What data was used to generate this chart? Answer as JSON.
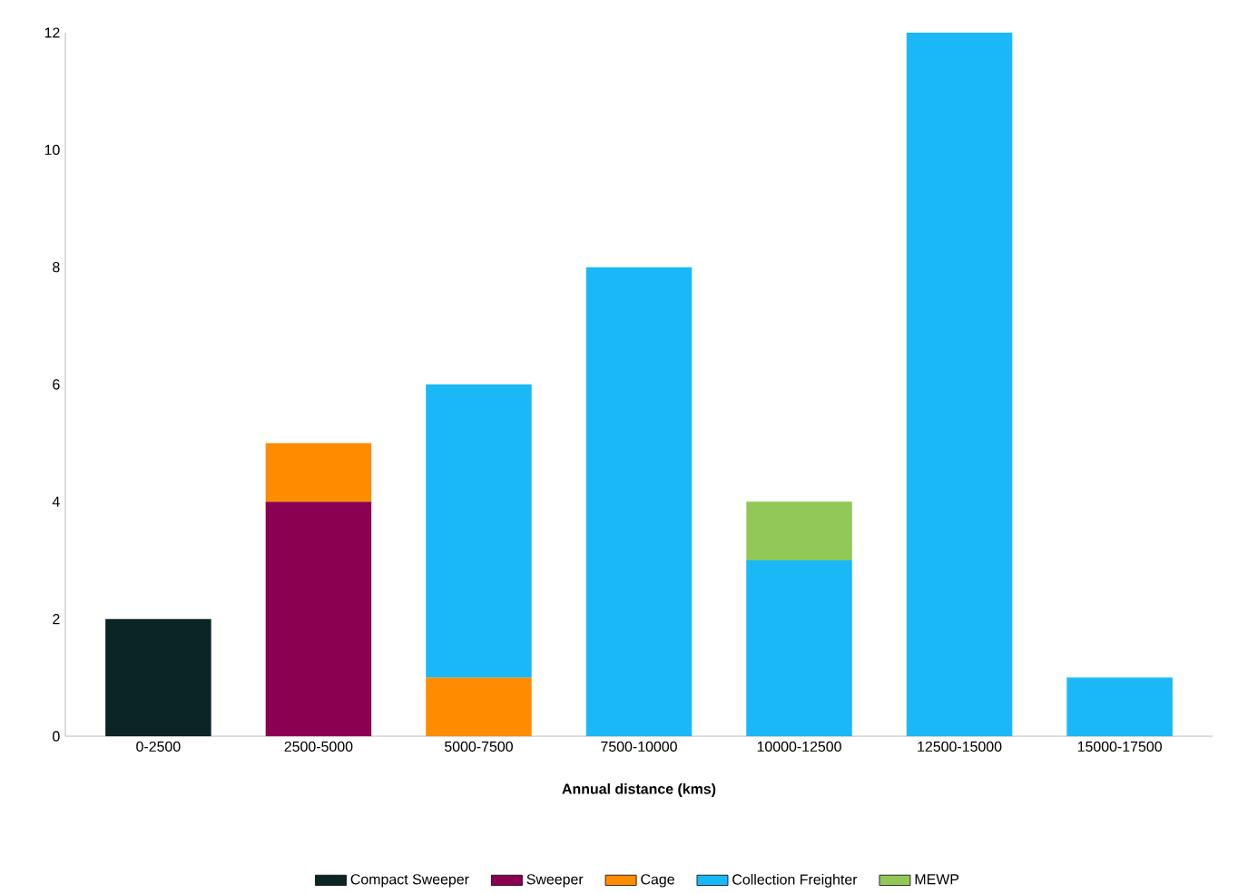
{
  "chart_data": {
    "type": "bar",
    "stacked": true,
    "xlabel": "**Annual distance (kms)**",
    "categories": [
      "0-2500",
      "2500-5000",
      "5000-7500",
      "7500-10000",
      "10000-12500",
      "12500-15000",
      "15000-17500"
    ],
    "series": [
      {
        "name": "Compact Sweeper",
        "color": "#0b2424",
        "values": [
          2,
          null,
          null,
          null,
          null,
          null,
          null
        ]
      },
      {
        "name": "Sweeper",
        "color": "#8b0050",
        "values": [
          null,
          4,
          null,
          null,
          null,
          null,
          null
        ]
      },
      {
        "name": "Cage",
        "color": "#ff8c00",
        "values": [
          null,
          1,
          1,
          null,
          null,
          null,
          null
        ]
      },
      {
        "name": "Collection Freighter",
        "color": "#1ab8f7",
        "values": [
          null,
          null,
          5,
          8,
          3,
          12,
          1
        ]
      },
      {
        "name": "MEWP",
        "color": "#92c857",
        "values": [
          null,
          null,
          null,
          null,
          1,
          null,
          null
        ]
      }
    ],
    "ylim": [
      0,
      12
    ],
    "yticks": [
      0,
      2,
      4,
      6,
      8,
      10,
      12
    ],
    "grid": false,
    "legend": "bottom"
  }
}
